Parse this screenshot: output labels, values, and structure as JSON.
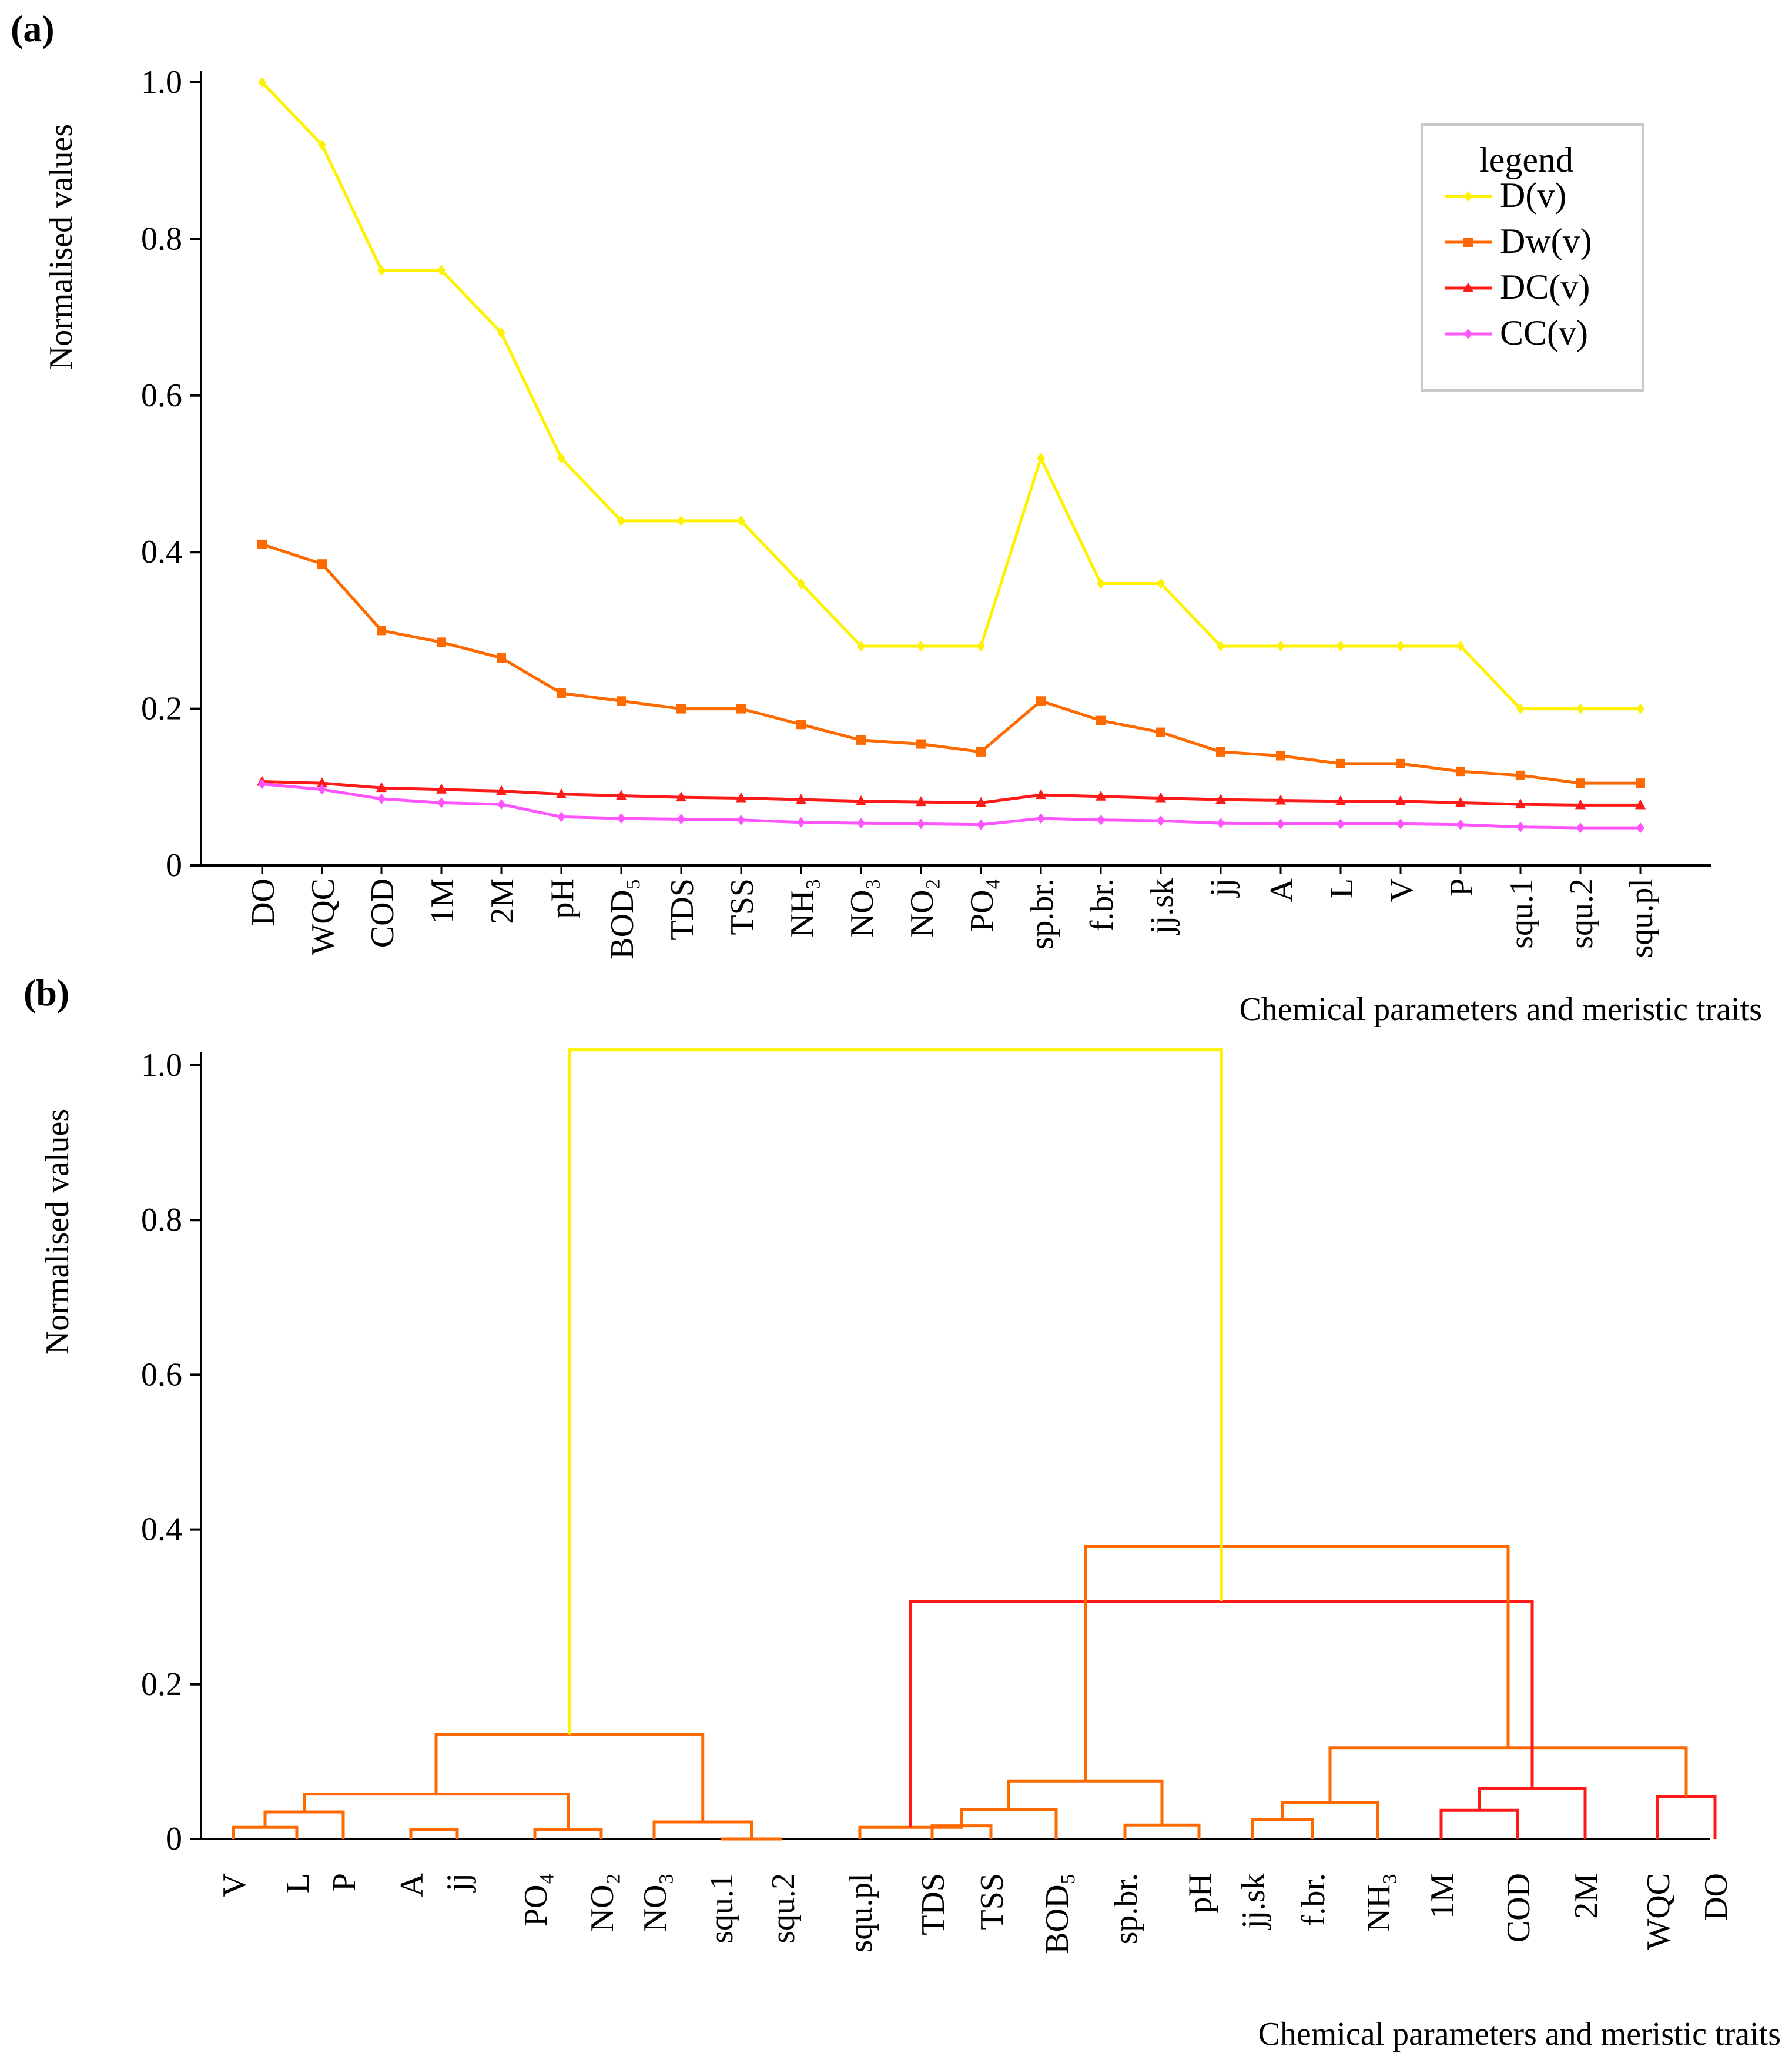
{
  "chart_data": [
    {
      "panel_label": "(a)",
      "type": "line",
      "ylabel": "Normalised values",
      "xlabel": "Chemical parameters and meristic traits",
      "ylim": [
        0,
        1.0
      ],
      "yticks": [
        "1.0",
        "0.8",
        "0.6",
        "0.4",
        "0.2",
        "0"
      ],
      "grid": false,
      "legend": {
        "title": "legend",
        "position": "top-right"
      },
      "categories": [
        "DO",
        "WQC",
        "COD",
        "1M",
        "2M",
        "pH",
        "BOD₅",
        "TDS",
        "TSS",
        "NH₃",
        "NO₃",
        "NO₂",
        "PO₄",
        "sp.br.",
        "f.br.",
        "jj.sk",
        "jj",
        "A",
        "L",
        "V",
        "P",
        "squ.1",
        "squ.2",
        "squ.pl"
      ],
      "series": [
        {
          "name": "D(v)",
          "color": "#FFF200",
          "marker": "diamond",
          "values": [
            1.0,
            0.92,
            0.76,
            0.76,
            0.68,
            0.52,
            0.44,
            0.44,
            0.44,
            0.36,
            0.28,
            0.28,
            0.28,
            0.52,
            0.36,
            0.36,
            0.28,
            0.28,
            0.28,
            0.28,
            0.28,
            0.2,
            0.2,
            0.2
          ]
        },
        {
          "name": "Dw(v)",
          "color": "#FF6A00",
          "marker": "square",
          "values": [
            0.41,
            0.385,
            0.3,
            0.285,
            0.265,
            0.22,
            0.21,
            0.2,
            0.2,
            0.18,
            0.16,
            0.155,
            0.145,
            0.21,
            0.185,
            0.17,
            0.145,
            0.14,
            0.13,
            0.13,
            0.12,
            0.115,
            0.105,
            0.105
          ]
        },
        {
          "name": "DC(v)",
          "color": "#FF1A1A",
          "marker": "triangle",
          "values": [
            0.107,
            0.105,
            0.099,
            0.097,
            0.095,
            0.091,
            0.089,
            0.087,
            0.086,
            0.084,
            0.082,
            0.081,
            0.08,
            0.09,
            0.088,
            0.086,
            0.084,
            0.083,
            0.082,
            0.082,
            0.08,
            0.078,
            0.077,
            0.077
          ]
        },
        {
          "name": "CC(v)",
          "color": "#FF55FF",
          "marker": "diamond",
          "values": [
            0.104,
            0.097,
            0.085,
            0.08,
            0.078,
            0.062,
            0.06,
            0.059,
            0.058,
            0.055,
            0.054,
            0.053,
            0.052,
            0.06,
            0.058,
            0.057,
            0.054,
            0.053,
            0.053,
            0.053,
            0.052,
            0.049,
            0.048,
            0.048
          ]
        }
      ]
    },
    {
      "panel_label": "(b)",
      "type": "dendrogram",
      "ylabel": "Normalised values",
      "xlabel": "Chemical parameters and meristic traits",
      "ylim": [
        0,
        1.0
      ],
      "yticks": [
        "1.0",
        "0.8",
        "0.6",
        "0.4",
        "0.2",
        "0"
      ],
      "grid": false,
      "leaves": [
        "V",
        "L",
        "P",
        "A",
        "jj",
        "PO₄",
        "NO₂",
        "NO₃",
        "squ.1",
        "squ.2",
        "squ.pl",
        "TDS",
        "TSS",
        "BOD₅",
        "sp.br.",
        "pH",
        "jj.sk",
        "f.br.",
        "NH₃",
        "1M",
        "COD",
        "2M",
        "WQC",
        "DO"
      ],
      "merges": [
        {
          "left": 0,
          "right": 1,
          "height": 0.015,
          "color": "#FF6A00"
        },
        {
          "left": 3,
          "right": 4,
          "height": 0.012,
          "color": "#FF6A00"
        },
        {
          "left": 5,
          "right": 6,
          "height": 0.012,
          "color": "#FF6A00"
        },
        {
          "left": 8,
          "right": 9,
          "height": 0.0,
          "color": "#FF6A00"
        },
        {
          "left": 11,
          "right": 12,
          "height": 0.017,
          "color": "#FF6A00"
        },
        {
          "left": 14,
          "right": 15,
          "height": 0.018,
          "color": "#FF6A00"
        },
        {
          "left": 16,
          "right": 17,
          "height": 0.025,
          "color": "#FF6A00"
        },
        {
          "left": 19,
          "right": 20,
          "height": 0.037,
          "color": "#FF1A1A"
        },
        {
          "left": 22,
          "right": 23,
          "height": 0.055,
          "color": "#FF1A1A"
        },
        {
          "left": 24,
          "right": 2,
          "height": 0.035,
          "color": "#FF6A00"
        },
        {
          "left": 27,
          "right": 7,
          "height": 0.022,
          "color": "#FF6A00"
        },
        {
          "left": 27.5,
          "right": 10,
          "height": 0.015,
          "color": "#FF6A00"
        },
        {
          "left": 28,
          "right": 13,
          "height": 0.038,
          "color": "#FF6A00"
        },
        {
          "left": 30,
          "right": 18,
          "height": 0.047,
          "color": "#FF6A00"
        },
        {
          "left": 31,
          "right": 21,
          "height": 0.065,
          "color": "#FF1A1A"
        },
        {
          "left": 33,
          "right": 26,
          "height": 0.058,
          "color": "#FF6A00"
        },
        {
          "left": 36,
          "right": 29,
          "height": 0.075,
          "color": "#FF6A00"
        },
        {
          "left": 37,
          "right": 32,
          "height": 0.118,
          "color": "#FF6A00"
        },
        {
          "left": 39,
          "right": 34,
          "height": 0.135,
          "color": "#FF6A00"
        },
        {
          "left": 35,
          "right": 38,
          "height": 0.307,
          "color": "#FF1A1A"
        },
        {
          "left": 41,
          "right": 40,
          "height": 0.378,
          "color": "#FF6A00"
        },
        {
          "left": 43,
          "right": 42,
          "height": 1.02,
          "color": "#FFF200"
        }
      ]
    }
  ]
}
